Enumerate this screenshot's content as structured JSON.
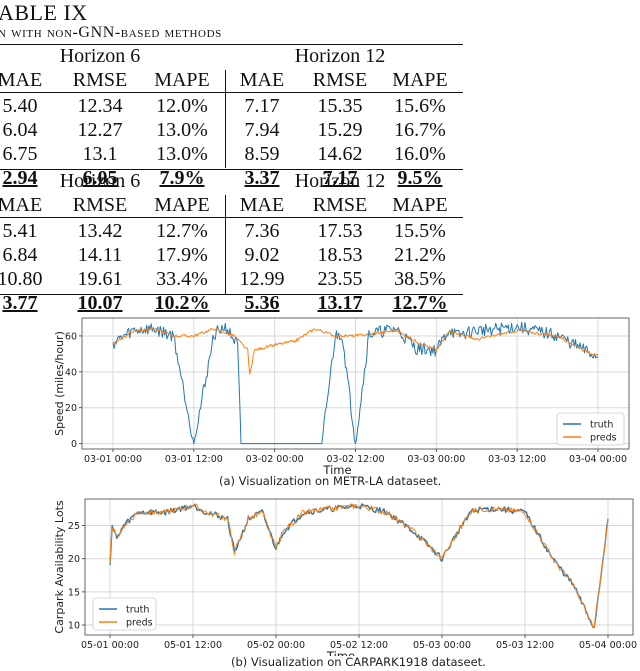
{
  "table": {
    "title": "ABLE IX",
    "subtitle": "n with non-GNN-based methods",
    "blocks": [
      {
        "horizons": [
          "Horizon 6",
          "Horizon 12"
        ],
        "columns": [
          "MAE",
          "RMSE",
          "MAPE",
          "MAE",
          "RMSE",
          "MAPE"
        ],
        "rows": [
          [
            "5.40",
            "12.34",
            "12.0%",
            "7.17",
            "15.35",
            "15.6%"
          ],
          [
            "6.04",
            "12.27",
            "13.0%",
            "7.94",
            "15.29",
            "16.7%"
          ],
          [
            "6.75",
            "13.1",
            "13.0%",
            "8.59",
            "14.62",
            "16.0%"
          ]
        ],
        "best": [
          "2.94",
          "6.05",
          "7.9%",
          "3.37",
          "7.17",
          "9.5%"
        ]
      },
      {
        "horizons": [
          "Horizon 6",
          "Horizon 12"
        ],
        "columns": [
          "MAE",
          "RMSE",
          "MAPE",
          "MAE",
          "RMSE",
          "MAPE"
        ],
        "rows": [
          [
            "5.41",
            "13.42",
            "12.7%",
            "7.36",
            "17.53",
            "15.5%"
          ],
          [
            "6.84",
            "14.11",
            "17.9%",
            "9.02",
            "18.53",
            "21.2%"
          ],
          [
            "10.80",
            "19.61",
            "33.4%",
            "12.99",
            "23.55",
            "38.5%"
          ]
        ],
        "best": [
          "3.77",
          "10.07",
          "10.2%",
          "5.36",
          "13.17",
          "12.7%"
        ]
      }
    ]
  },
  "chart_data": [
    {
      "type": "line",
      "title": "",
      "caption": "(a) Visualization on METR-LA dataseet.",
      "xlabel": "Time",
      "ylabel": "Speed (miles/hour)",
      "xticks": [
        "03-01 00:00",
        "03-01 12:00",
        "03-02 00:00",
        "03-02 12:00",
        "03-03 00:00",
        "03-03 12:00",
        "03-04 00:00"
      ],
      "yticks": [
        "0",
        "20",
        "40",
        "60"
      ],
      "ylim": [
        -3,
        70
      ],
      "grid": true,
      "legend_position": "lower right",
      "series": [
        {
          "name": "truth",
          "color": "#1f77b4",
          "x_hours": [
            0,
            3,
            6,
            9,
            12,
            15,
            16.5,
            17,
            17.2,
            18.5,
            19,
            21,
            24,
            28,
            31,
            33,
            34,
            36,
            38,
            42,
            45,
            48,
            50,
            51,
            54,
            60,
            66,
            70,
            72
          ],
          "values": [
            56,
            63,
            64,
            60,
            0,
            61,
            65,
            64,
            62,
            55,
            0,
            0,
            0,
            0,
            0,
            60,
            61,
            0,
            61,
            64,
            53,
            52,
            64,
            60,
            63,
            65,
            60,
            52,
            48
          ]
        },
        {
          "name": "preds",
          "color": "#ff7f0e",
          "x_hours": [
            0,
            3,
            6,
            9,
            12,
            15,
            18,
            20,
            20.3,
            21,
            24,
            27,
            30,
            33,
            36,
            42,
            45,
            48,
            50,
            54,
            60,
            66,
            70,
            72
          ],
          "values": [
            55,
            63,
            64,
            60,
            60,
            64,
            60,
            52,
            38,
            52,
            55,
            57,
            64,
            60,
            60,
            63,
            57,
            52,
            63,
            58,
            63,
            60,
            52,
            49
          ]
        }
      ]
    },
    {
      "type": "line",
      "title": "",
      "caption": "(b) Visualization on CARPARK1918 dataseet.",
      "xlabel": "Time",
      "ylabel": "Carpark Availability Lots",
      "xticks": [
        "05-01 00:00",
        "05-01 12:00",
        "05-02 00:00",
        "05-02 12:00",
        "05-03 00:00",
        "05-03 12:00",
        "05-04 00:00"
      ],
      "yticks": [
        "10",
        "15",
        "20",
        "25"
      ],
      "ylim": [
        8.5,
        29
      ],
      "grid": true,
      "legend_position": "lower left",
      "series": [
        {
          "name": "truth",
          "color": "#1f77b4",
          "x_hours": [
            0,
            0.3,
            1,
            2,
            4,
            8,
            12,
            14,
            17,
            18,
            20,
            22,
            24,
            25,
            28,
            32,
            36,
            40,
            44,
            48,
            52,
            54,
            56,
            60,
            64,
            67,
            70,
            72
          ],
          "values": [
            19,
            25,
            23,
            25,
            27,
            27,
            28,
            27,
            26,
            21,
            26,
            27,
            21.5,
            24,
            27,
            27.5,
            28,
            27,
            24,
            20,
            27,
            27.5,
            27.5,
            27,
            20,
            16,
            9.5,
            26
          ]
        },
        {
          "name": "preds",
          "color": "#ff7f0e",
          "x_hours": [
            0,
            0.3,
            1,
            2,
            4,
            8,
            12,
            14,
            17,
            18,
            20,
            22,
            24,
            25,
            28,
            32,
            36,
            40,
            44,
            48,
            52,
            54,
            56,
            60,
            64,
            67,
            70,
            72
          ],
          "values": [
            19,
            25,
            23,
            25,
            27,
            27,
            28,
            27,
            26,
            21,
            26,
            27,
            21.5,
            24,
            27,
            27.5,
            28,
            27,
            24,
            20,
            27,
            27.5,
            27.5,
            27,
            20,
            16,
            9.5,
            26
          ]
        }
      ]
    }
  ]
}
